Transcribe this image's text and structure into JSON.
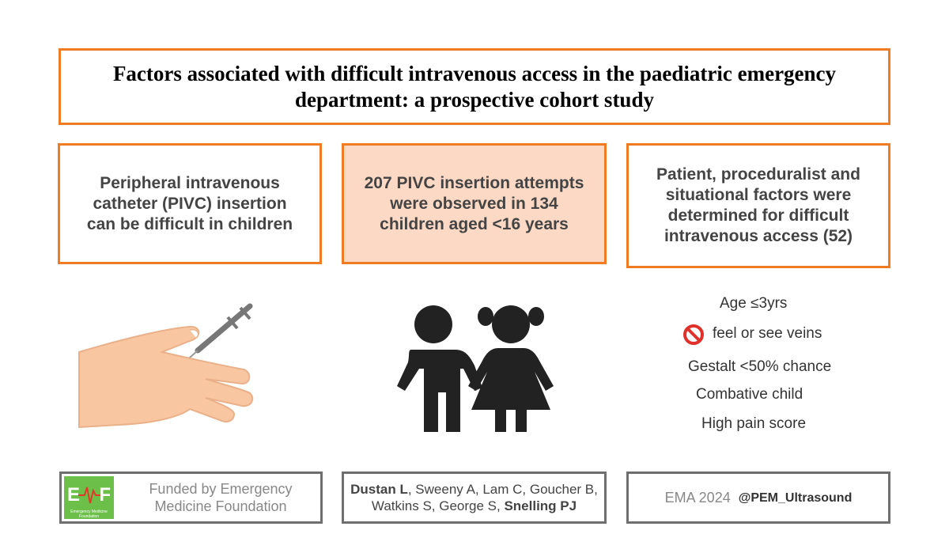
{
  "title": "Factors associated with difficult intravenous access in the paediatric emergency department: a prospective cohort study",
  "panels": [
    "Peripheral intravenous catheter (PIVC) insertion can be difficult in children",
    "207 PIVC insertion attempts were observed in 134 children aged <16 years",
    "Patient, proceduralist and situational factors were determined for difficult intravenous access (52)"
  ],
  "factors": [
    "Age ≤3yrs",
    "feel or see veins",
    "Gestalt <50% chance",
    "Combative child",
    "High pain score"
  ],
  "footer": {
    "logo": {
      "left": "E",
      "right": "F",
      "caption": "Emergency Medicine Foundation"
    },
    "funding": "Funded by Emergency Medicine Foundation",
    "authors": [
      {
        "text": "Dustan L",
        "bold": true
      },
      {
        "text": ", Sweeny A, Lam C, Goucher B, Watkins S, George S, ",
        "bold": false
      },
      {
        "text": "Snelling PJ",
        "bold": true
      }
    ],
    "conference": "EMA 2024",
    "handle": "@PEM_Ultrasound"
  }
}
